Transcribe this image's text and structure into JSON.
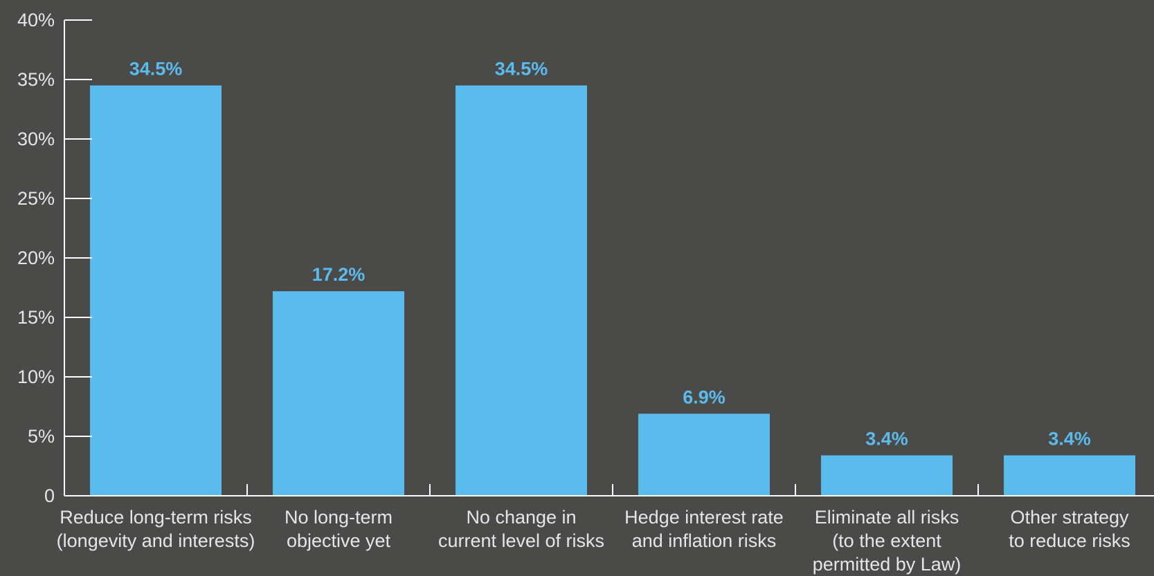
{
  "chart_data": {
    "type": "bar",
    "title": "",
    "xlabel": "",
    "ylabel": "",
    "ylim": [
      0,
      40
    ],
    "grid": false,
    "legend": "none",
    "y_ticks": [
      {
        "value": 0,
        "label": "0"
      },
      {
        "value": 5,
        "label": "5%"
      },
      {
        "value": 10,
        "label": "10%"
      },
      {
        "value": 15,
        "label": "15%"
      },
      {
        "value": 20,
        "label": "20%"
      },
      {
        "value": 25,
        "label": "25%"
      },
      {
        "value": 30,
        "label": "30%"
      },
      {
        "value": 35,
        "label": "35%"
      },
      {
        "value": 40,
        "label": "40%"
      }
    ],
    "categories": [
      [
        "Reduce long-term risks",
        "(longevity and interests)"
      ],
      [
        "No long-term",
        "objective yet"
      ],
      [
        "No change in",
        "current level of risks"
      ],
      [
        "Hedge interest rate",
        "and inflation risks"
      ],
      [
        "Eliminate all risks",
        "(to the extent",
        "permitted by Law)"
      ],
      [
        "Other strategy",
        "to reduce risks"
      ]
    ],
    "values": [
      34.5,
      17.2,
      34.5,
      6.9,
      3.4,
      3.4
    ],
    "data_labels": [
      "34.5%",
      "17.2%",
      "34.5%",
      "6.9%",
      "3.4%",
      "3.4%"
    ],
    "colors": {
      "background": "#4a4a49",
      "bar": "#5bbbed",
      "data_label": "#5bbbed",
      "axis": "#ffffff",
      "text": "#e6e6e6"
    }
  }
}
